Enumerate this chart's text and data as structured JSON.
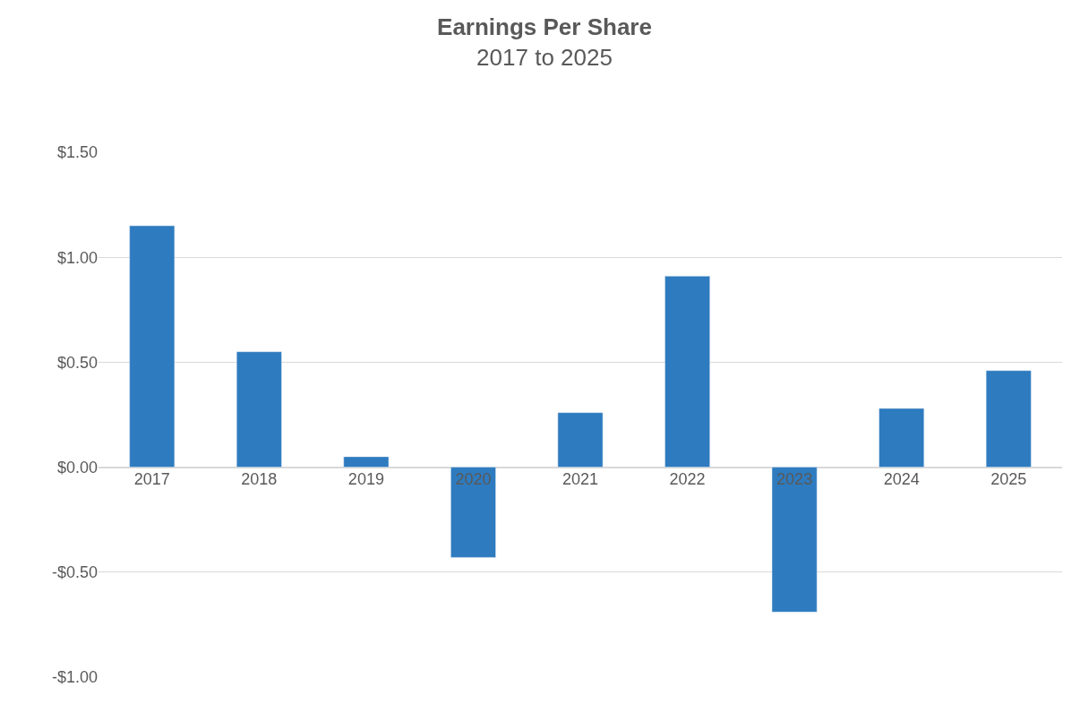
{
  "chart_data": {
    "type": "bar",
    "title": "Earnings Per Share",
    "subtitle": "2017 to 2025",
    "categories": [
      "2017",
      "2018",
      "2019",
      "2020",
      "2021",
      "2022",
      "2023",
      "2024",
      "2025"
    ],
    "values": [
      1.15,
      0.55,
      0.05,
      -0.43,
      0.26,
      0.91,
      -0.69,
      0.28,
      0.46
    ],
    "color": "#2e7bbf",
    "ylim": [
      -1,
      1.5
    ],
    "yticks": [
      {
        "value": -1,
        "label": "-$1.00"
      },
      {
        "value": -0.5,
        "label": "-$0.50"
      },
      {
        "value": 0,
        "label": "$0.00"
      },
      {
        "value": 0.5,
        "label": "$0.50"
      },
      {
        "value": 1,
        "label": "$1.00"
      },
      {
        "value": 1.5,
        "label": "$1.50"
      }
    ],
    "grid": "y"
  }
}
